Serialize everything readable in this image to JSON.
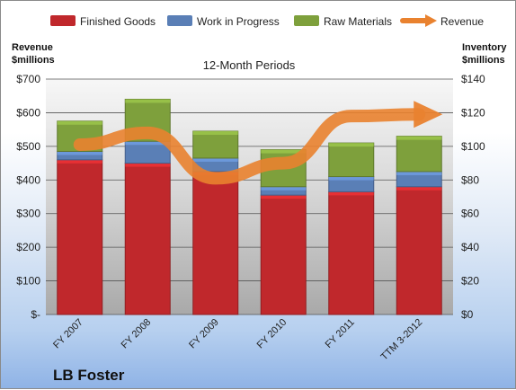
{
  "legend": {
    "finished_goods": "Finished Goods",
    "wip": "Work in Progress",
    "raw": "Raw Materials",
    "revenue": "Revenue"
  },
  "left_axis_title": [
    "Revenue",
    "$millions"
  ],
  "right_axis_title": [
    "Inventory",
    "$millions"
  ],
  "plot_title": "12-Month Periods",
  "footer_label": "LB Foster",
  "colors": {
    "finished_goods": "#c0282c",
    "wip": "#5a7fb6",
    "raw": "#7ea03c",
    "revenue": "#e9822f"
  },
  "chart_data": {
    "type": "bar",
    "stacked": true,
    "categories": [
      "FY 2007",
      "FY 2008",
      "FY 2009",
      "FY 2010",
      "FY 2011",
      "TTM 3-2012"
    ],
    "left_axis": {
      "ylim": [
        0,
        700
      ],
      "ticks": [
        "$-",
        "$100",
        "$200",
        "$300",
        "$400",
        "$500",
        "$600",
        "$700"
      ]
    },
    "right_axis": {
      "ylim": [
        0,
        140
      ],
      "ticks": [
        "$0",
        "$20",
        "$40",
        "$60",
        "$80",
        "$100",
        "$120",
        "$140"
      ]
    },
    "series": [
      {
        "name": "Finished Goods",
        "axis": "right",
        "values": [
          92,
          90,
          85,
          71,
          73,
          76
        ]
      },
      {
        "name": "Work in Progress",
        "axis": "right",
        "values": [
          5,
          13,
          8,
          5,
          9,
          9
        ]
      },
      {
        "name": "Raw Materials",
        "axis": "right",
        "values": [
          18,
          25,
          16,
          22,
          20,
          21
        ]
      },
      {
        "name": "Revenue",
        "axis": "left",
        "type": "line",
        "values": [
          505,
          540,
          405,
          450,
          590,
          595
        ]
      }
    ],
    "grid": true
  }
}
